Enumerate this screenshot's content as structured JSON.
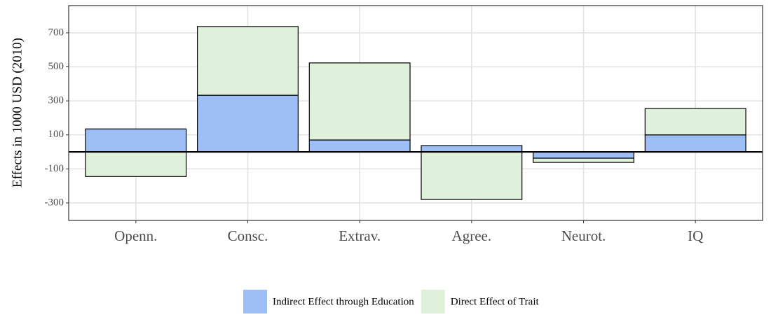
{
  "chart_data": {
    "type": "bar",
    "stacked": true,
    "y_label": "Effects in 1000 USD (2010)",
    "categories": [
      "Openn.",
      "Consc.",
      "Extrav.",
      "Agree.",
      "Neurot.",
      "IQ"
    ],
    "series": [
      {
        "name": "Indirect Effect through Education",
        "color": "#9dbff6",
        "values": [
          135,
          333,
          70,
          37,
          -37,
          100
        ]
      },
      {
        "name": "Direct Effect of Trait",
        "color": "#e0f1db",
        "values": [
          -145,
          404,
          453,
          -280,
          -25,
          155
        ]
      }
    ],
    "ylim": [
      -403,
      860
    ],
    "yticks": [
      -300,
      -100,
      100,
      300,
      500,
      700
    ],
    "hline": 0,
    "grid": true,
    "legend": "bottom"
  }
}
